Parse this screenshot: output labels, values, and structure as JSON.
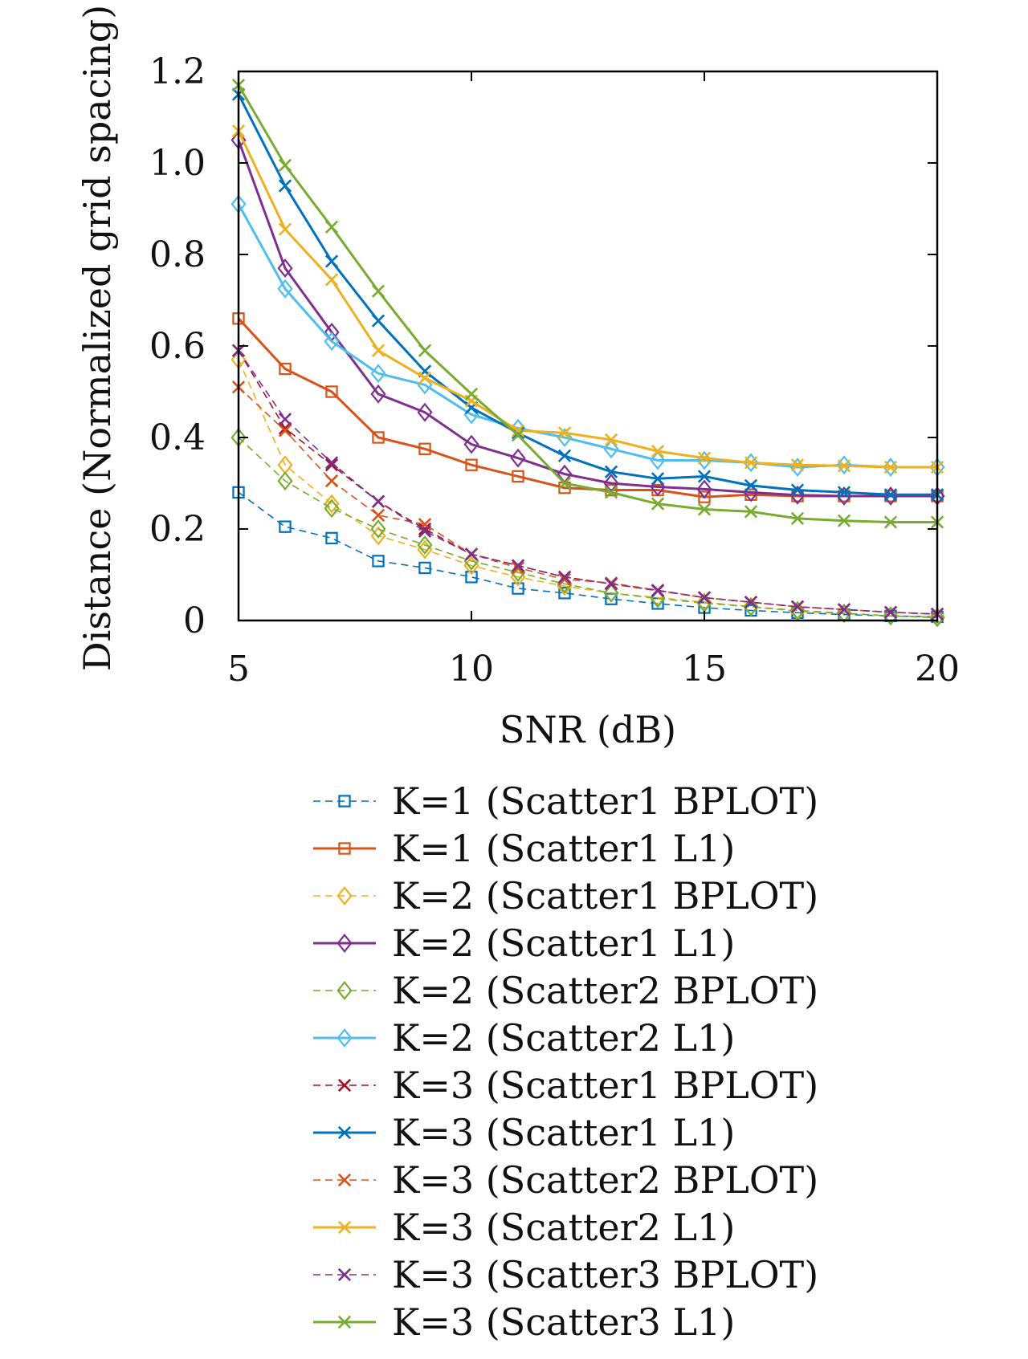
{
  "chart_data": {
    "type": "line",
    "title": "",
    "xlabel": "SNR (dB)",
    "ylabel": "Distance (Normalized grid spacing)",
    "xlim": [
      5,
      20
    ],
    "ylim": [
      0,
      1.2
    ],
    "xticks": [
      "5",
      "10",
      "15",
      "20"
    ],
    "yticks": [
      "0",
      "0.2",
      "0.4",
      "0.6",
      "0.8",
      "1.0",
      "1.2"
    ],
    "grid": false,
    "legend_position": "below",
    "x": [
      5,
      6,
      7,
      8,
      9,
      10,
      11,
      12,
      13,
      14,
      15,
      16,
      17,
      18,
      19,
      20
    ],
    "series": [
      {
        "name": "K=1 (Scatter1 BPLOT)",
        "color": "#0072bd",
        "marker": "square",
        "dashed": true,
        "values": [
          0.28,
          0.205,
          0.18,
          0.13,
          0.115,
          0.095,
          0.07,
          0.06,
          0.047,
          0.037,
          0.028,
          0.022,
          0.017,
          0.013,
          0.01,
          0.008
        ]
      },
      {
        "name": "K=1 (Scatter1 L1)",
        "color": "#d95319",
        "marker": "square",
        "dashed": false,
        "values": [
          0.66,
          0.55,
          0.5,
          0.4,
          0.375,
          0.34,
          0.315,
          0.29,
          0.285,
          0.285,
          0.27,
          0.275,
          0.272,
          0.272,
          0.272,
          0.272
        ]
      },
      {
        "name": "K=2 (Scatter1 BPLOT)",
        "color": "#edb120",
        "marker": "diamond",
        "dashed": true,
        "values": [
          0.57,
          0.34,
          0.255,
          0.185,
          0.155,
          0.12,
          0.095,
          0.075,
          0.06,
          0.05,
          0.04,
          0.03,
          0.02,
          0.015,
          0.01,
          0.008
        ]
      },
      {
        "name": "K=2 (Scatter1 L1)",
        "color": "#7e2f8e",
        "marker": "diamond",
        "dashed": false,
        "values": [
          1.05,
          0.77,
          0.63,
          0.495,
          0.455,
          0.385,
          0.355,
          0.32,
          0.3,
          0.292,
          0.287,
          0.28,
          0.274,
          0.272,
          0.272,
          0.272
        ]
      },
      {
        "name": "K=2 (Scatter2 BPLOT)",
        "color": "#77ac30",
        "marker": "diamond",
        "dashed": true,
        "values": [
          0.4,
          0.305,
          0.245,
          0.2,
          0.165,
          0.13,
          0.105,
          0.08,
          0.06,
          0.048,
          0.038,
          0.03,
          0.022,
          0.016,
          0.01,
          0.006
        ]
      },
      {
        "name": "K=2 (Scatter2 L1)",
        "color": "#4dbeee",
        "marker": "diamond",
        "dashed": false,
        "values": [
          0.91,
          0.725,
          0.61,
          0.54,
          0.515,
          0.45,
          0.42,
          0.4,
          0.375,
          0.35,
          0.35,
          0.345,
          0.335,
          0.34,
          0.335,
          0.335
        ]
      },
      {
        "name": "K=3 (Scatter1 BPLOT)",
        "color": "#a2142f",
        "marker": "x",
        "dashed": true,
        "values": [
          0.59,
          0.42,
          0.34,
          0.26,
          0.2,
          0.145,
          0.12,
          0.095,
          0.08,
          0.065,
          0.05,
          0.04,
          0.03,
          0.024,
          0.018,
          0.014
        ]
      },
      {
        "name": "K=3 (Scatter1 L1)",
        "color": "#0072bd",
        "marker": "x",
        "dashed": false,
        "values": [
          1.15,
          0.95,
          0.785,
          0.655,
          0.545,
          0.465,
          0.41,
          0.36,
          0.325,
          0.31,
          0.315,
          0.295,
          0.285,
          0.28,
          0.275,
          0.275
        ]
      },
      {
        "name": "K=3 (Scatter2 BPLOT)",
        "color": "#d95319",
        "marker": "x",
        "dashed": true,
        "values": [
          0.51,
          0.415,
          0.305,
          0.23,
          0.21,
          0.145,
          0.115,
          0.09,
          0.082,
          0.066,
          0.05,
          0.04,
          0.03,
          0.024,
          0.018,
          0.014
        ]
      },
      {
        "name": "K=3 (Scatter2 L1)",
        "color": "#edb120",
        "marker": "x",
        "dashed": false,
        "values": [
          1.07,
          0.855,
          0.745,
          0.59,
          0.53,
          0.48,
          0.415,
          0.41,
          0.395,
          0.37,
          0.355,
          0.345,
          0.34,
          0.338,
          0.335,
          0.335
        ]
      },
      {
        "name": "K=3 (Scatter3 BPLOT)",
        "color": "#7e2f8e",
        "marker": "x",
        "dashed": true,
        "values": [
          0.59,
          0.44,
          0.345,
          0.26,
          0.195,
          0.145,
          0.12,
          0.095,
          0.08,
          0.066,
          0.05,
          0.04,
          0.03,
          0.024,
          0.018,
          0.014
        ]
      },
      {
        "name": "K=3 (Scatter3 L1)",
        "color": "#77ac30",
        "marker": "x",
        "dashed": false,
        "values": [
          1.17,
          0.995,
          0.86,
          0.72,
          0.59,
          0.495,
          0.405,
          0.3,
          0.28,
          0.255,
          0.243,
          0.238,
          0.223,
          0.218,
          0.215,
          0.215
        ]
      }
    ]
  }
}
